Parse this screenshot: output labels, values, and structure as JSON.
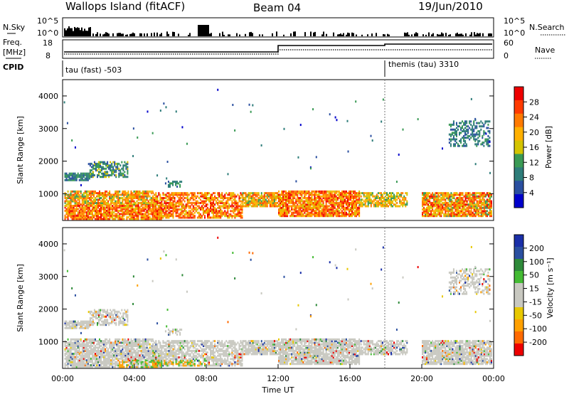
{
  "header": {
    "station": "Wallops Island (fitACF)",
    "beam": "Beam 04",
    "date": "19/Jun/2010"
  },
  "top_panels": {
    "nsky_label": "N.Sky",
    "nsky_ticks": [
      "10^5",
      "10^0"
    ],
    "nsearch_label": "N.Search",
    "freq_label_line1": "Freq.",
    "freq_label_line2": "[MHz]",
    "freq_ticks": [
      "18",
      "8"
    ],
    "nave_ticks": [
      "60",
      "0"
    ],
    "nave_label": "Nave",
    "cpid_label": "CPID",
    "cpid_segments": [
      {
        "name": "tau (fast) -503",
        "start_hour": 0
      },
      {
        "name": "themis (tau) 3310",
        "start_hour": 18
      }
    ]
  },
  "colors": {
    "power_scale": [
      "#0000cc",
      "#2a4fa0",
      "#2e7d7a",
      "#3a9a55",
      "#d4c400",
      "#ffb000",
      "#ff7a00",
      "#ff3a00",
      "#ee0000"
    ],
    "velocity_scale": [
      "#ee0000",
      "#ff6a00",
      "#ffa000",
      "#e8c800",
      "#c8c8c0",
      "#c8c8c0",
      "#44bb33",
      "#2e8a3a",
      "#2a4fa0",
      "#1a2fa8"
    ]
  },
  "chart_data": [
    {
      "type": "heatmap",
      "name": "power",
      "xlabel": "",
      "ylabel": "Slant Range [km]",
      "xlim": [
        0,
        24
      ],
      "ylim": [
        180,
        4500
      ],
      "yticks": [
        "1000",
        "2000",
        "3000",
        "4000"
      ],
      "colorbar_label": "Power [dB]",
      "colorbar_ticks": [
        "4",
        "8",
        "12",
        "16",
        "20",
        "24",
        "28"
      ],
      "colorbar_range": [
        0,
        30
      ]
    },
    {
      "type": "heatmap",
      "name": "velocity",
      "xlabel": "Time UT",
      "ylabel": "Slant Range [km]",
      "xlim": [
        0,
        24
      ],
      "ylim": [
        180,
        4500
      ],
      "xticks": [
        "00:00",
        "04:00",
        "08:00",
        "12:00",
        "16:00",
        "20:00",
        "00:00"
      ],
      "yticks": [
        "1000",
        "2000",
        "3000",
        "4000"
      ],
      "colorbar_label": "Velocity [m s⁻¹]",
      "colorbar_ticks": [
        "200",
        "100",
        "50",
        "15",
        "-15",
        "-50",
        "-100",
        "-200"
      ],
      "colorbar_range": [
        -250,
        250
      ]
    }
  ]
}
